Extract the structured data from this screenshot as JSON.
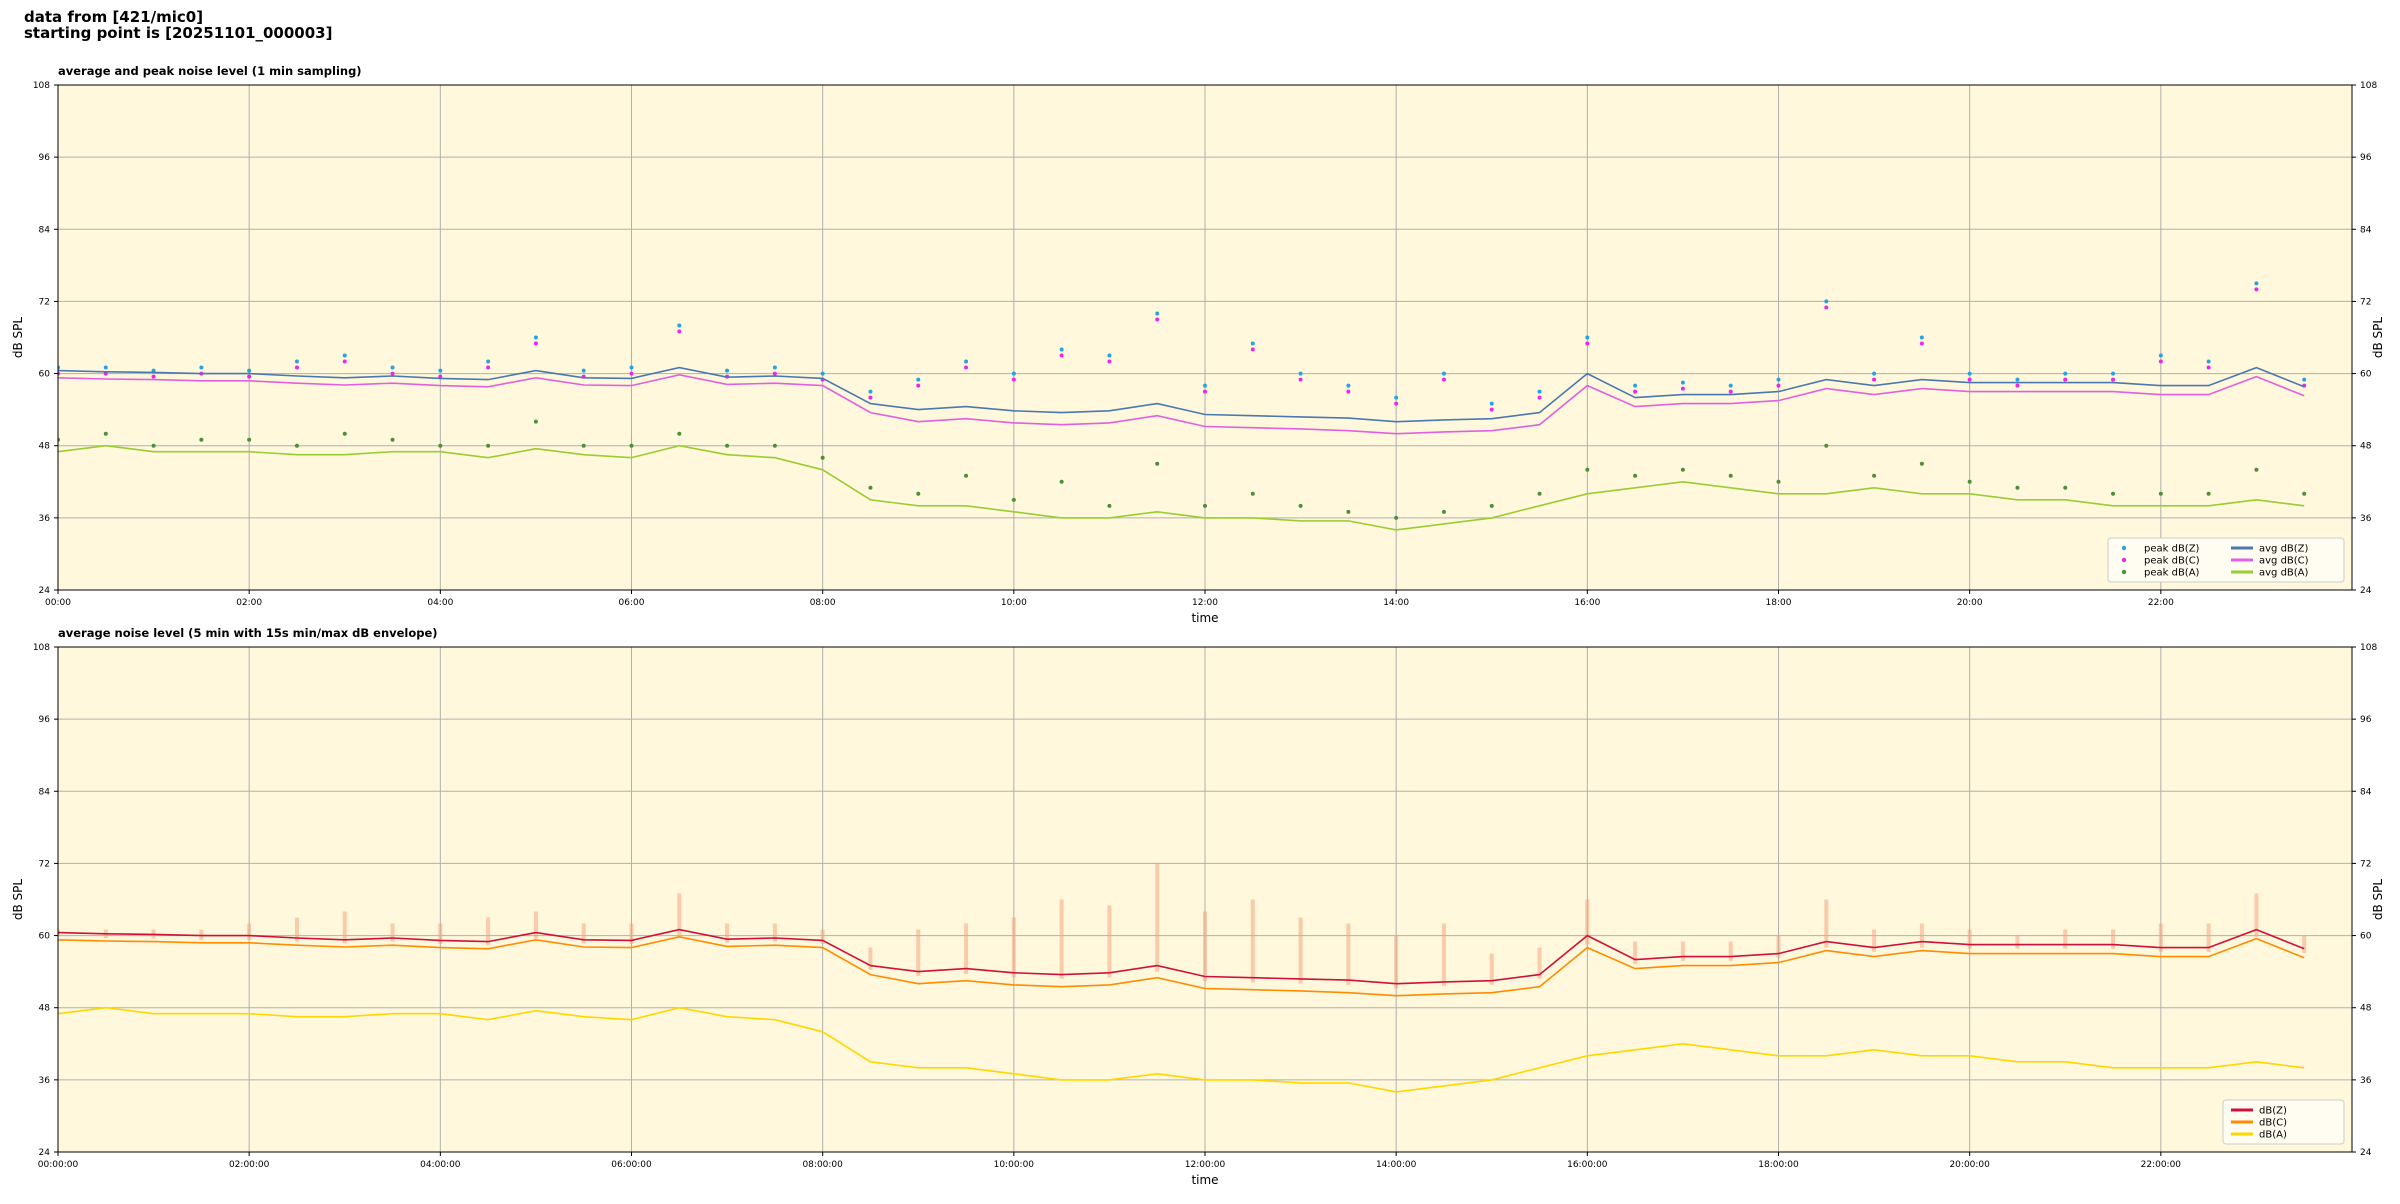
{
  "header": {
    "source": "data from [421/mic0]",
    "start": "starting point is [20251101_000003]"
  },
  "chart_data": [
    {
      "type": "line",
      "title": "average and peak noise level (1 min sampling)",
      "xlabel": "time",
      "ylabel": "dB SPL",
      "background": "#fff8dc",
      "grid": true,
      "legend": "lower right",
      "legend_columns": 2,
      "xlim": [
        0,
        24
      ],
      "xticks": [
        {
          "value": 0,
          "label": "00:00"
        },
        {
          "value": 2,
          "label": "02:00"
        },
        {
          "value": 4,
          "label": "04:00"
        },
        {
          "value": 6,
          "label": "06:00"
        },
        {
          "value": 8,
          "label": "08:00"
        },
        {
          "value": 10,
          "label": "10:00"
        },
        {
          "value": 12,
          "label": "12:00"
        },
        {
          "value": 14,
          "label": "14:00"
        },
        {
          "value": 16,
          "label": "16:00"
        },
        {
          "value": 18,
          "label": "18:00"
        },
        {
          "value": 20,
          "label": "20:00"
        },
        {
          "value": 22,
          "label": "22:00"
        }
      ],
      "ylim": [
        24,
        108
      ],
      "yticks": [
        24,
        36,
        48,
        60,
        72,
        84,
        96,
        108
      ],
      "x": [
        0,
        0.5,
        1,
        1.5,
        2,
        2.5,
        3,
        3.5,
        4,
        4.5,
        5,
        5.5,
        6,
        6.5,
        7,
        7.5,
        8,
        8.5,
        9,
        9.5,
        10,
        10.5,
        11,
        11.5,
        12,
        12.5,
        13,
        13.5,
        14,
        14.5,
        15,
        15.5,
        16,
        16.5,
        17,
        17.5,
        18,
        18.5,
        19,
        19.5,
        20,
        20.5,
        21,
        21.5,
        22,
        22.5,
        23,
        23.5
      ],
      "series": [
        {
          "name": "peak dB(Z)",
          "style": "points",
          "color": "#29a3e0",
          "values": [
            61,
            61,
            60.5,
            61,
            60.5,
            62,
            63,
            61,
            60.5,
            62,
            66,
            60.5,
            61,
            68,
            60.5,
            61,
            60,
            57,
            59,
            62,
            60,
            64,
            63,
            70,
            58,
            65,
            60,
            58,
            56,
            60,
            55,
            57,
            66,
            58,
            58.5,
            58,
            59,
            72,
            60,
            66,
            60,
            59,
            60,
            60,
            63,
            62,
            75,
            59
          ]
        },
        {
          "name": "peak dB(C)",
          "style": "points",
          "color": "#e82ae8",
          "values": [
            60,
            60,
            59.5,
            60,
            59.5,
            61,
            62,
            60,
            59.5,
            61,
            65,
            59.5,
            60,
            67,
            59.5,
            60,
            59,
            56,
            58,
            61,
            59,
            63,
            62,
            69,
            57,
            64,
            59,
            57,
            55,
            59,
            54,
            56,
            65,
            57,
            57.5,
            57,
            58,
            71,
            59,
            65,
            59,
            58,
            59,
            59,
            62,
            61,
            74,
            58
          ]
        },
        {
          "name": "peak dB(A)",
          "style": "points",
          "color": "#4f8f3a",
          "values": [
            49,
            50,
            48,
            49,
            49,
            48,
            50,
            49,
            48,
            48,
            52,
            48,
            48,
            50,
            48,
            48,
            46,
            41,
            40,
            43,
            39,
            42,
            38,
            45,
            38,
            40,
            38,
            37,
            36,
            37,
            38,
            40,
            44,
            43,
            44,
            43,
            42,
            48,
            43,
            45,
            42,
            41,
            41,
            40,
            40,
            40,
            44,
            40
          ]
        },
        {
          "name": "avg dB(Z)",
          "style": "line",
          "color": "#4a78b0",
          "values": [
            60.5,
            60.3,
            60.2,
            60,
            60,
            59.6,
            59.3,
            59.6,
            59.2,
            59,
            60.5,
            59.3,
            59.2,
            61,
            59.4,
            59.6,
            59.2,
            55,
            54,
            54.5,
            53.8,
            53.5,
            53.8,
            55,
            53.2,
            53,
            52.8,
            52.6,
            52,
            52.3,
            52.5,
            53.5,
            60,
            56,
            56.5,
            56.5,
            57,
            59,
            58,
            59,
            58.5,
            58.5,
            58.5,
            58.5,
            58,
            58,
            61,
            57.8
          ]
        },
        {
          "name": "avg dB(C)",
          "style": "line",
          "color": "#e060e0",
          "values": [
            59.3,
            59.1,
            59,
            58.8,
            58.8,
            58.4,
            58.1,
            58.4,
            58,
            57.8,
            59.3,
            58.1,
            58,
            59.8,
            58.2,
            58.4,
            58,
            53.5,
            52,
            52.5,
            51.8,
            51.5,
            51.8,
            53,
            51.2,
            51,
            50.8,
            50.5,
            50,
            50.3,
            50.5,
            51.5,
            58,
            54.5,
            55,
            55,
            55.5,
            57.5,
            56.5,
            57.5,
            57,
            57,
            57,
            57,
            56.5,
            56.5,
            59.5,
            56.3
          ]
        },
        {
          "name": "avg dB(A)",
          "style": "line",
          "color": "#9acd32",
          "values": [
            47,
            48,
            47,
            47,
            47,
            46.5,
            46.5,
            47,
            47,
            46,
            47.5,
            46.5,
            46,
            48,
            46.5,
            46,
            44,
            39,
            38,
            38,
            37,
            36,
            36,
            37,
            36,
            36,
            35.5,
            35.5,
            34,
            35,
            36,
            38,
            40,
            41,
            42,
            41,
            40,
            40,
            41,
            40,
            40,
            39,
            39,
            38,
            38,
            38,
            39,
            38
          ]
        }
      ]
    },
    {
      "type": "line",
      "title": "average noise level (5 min with 15s min/max dB envelope)",
      "xlabel": "time",
      "ylabel": "dB SPL",
      "background": "#fff8dc",
      "grid": true,
      "legend": "lower right",
      "legend_columns": 1,
      "xlim": [
        0,
        24
      ],
      "xticks": [
        {
          "value": 0,
          "label": "00:00:00"
        },
        {
          "value": 2,
          "label": "02:00:00"
        },
        {
          "value": 4,
          "label": "04:00:00"
        },
        {
          "value": 6,
          "label": "06:00:00"
        },
        {
          "value": 8,
          "label": "08:00:00"
        },
        {
          "value": 10,
          "label": "10:00:00"
        },
        {
          "value": 12,
          "label": "12:00:00"
        },
        {
          "value": 14,
          "label": "14:00:00"
        },
        {
          "value": 16,
          "label": "16:00:00"
        },
        {
          "value": 18,
          "label": "18:00:00"
        },
        {
          "value": 20,
          "label": "20:00:00"
        },
        {
          "value": 22,
          "label": "22:00:00"
        }
      ],
      "ylim": [
        24,
        108
      ],
      "yticks": [
        24,
        36,
        48,
        60,
        72,
        84,
        96,
        108
      ],
      "x": [
        0,
        0.5,
        1,
        1.5,
        2,
        2.5,
        3,
        3.5,
        4,
        4.5,
        5,
        5.5,
        6,
        6.5,
        7,
        7.5,
        8,
        8.5,
        9,
        9.5,
        10,
        10.5,
        11,
        11.5,
        12,
        12.5,
        13,
        13.5,
        14,
        14.5,
        15,
        15.5,
        16,
        16.5,
        17,
        17.5,
        18,
        18.5,
        19,
        19.5,
        20,
        20.5,
        21,
        21.5,
        22,
        22.5,
        23,
        23.5
      ],
      "series": [
        {
          "name": "dB(Z)",
          "style": "line",
          "color": "#d0103a",
          "values": [
            60.5,
            60.3,
            60.2,
            60,
            60,
            59.6,
            59.3,
            59.6,
            59.2,
            59,
            60.5,
            59.3,
            59.2,
            61,
            59.4,
            59.6,
            59.2,
            55,
            54,
            54.5,
            53.8,
            53.5,
            53.8,
            55,
            53.2,
            53,
            52.8,
            52.6,
            52,
            52.3,
            52.5,
            53.5,
            60,
            56,
            56.5,
            56.5,
            57,
            59,
            58,
            59,
            58.5,
            58.5,
            58.5,
            58.5,
            58,
            58,
            61,
            57.8
          ],
          "envelope": {
            "color": "#f4a582",
            "max": [
              61,
              61,
              61,
              61,
              62,
              63,
              64,
              62,
              62,
              63,
              64,
              62,
              62,
              67,
              62,
              62,
              61,
              58,
              61,
              62,
              63,
              66,
              65,
              72,
              64,
              66,
              63,
              62,
              60,
              62,
              57,
              58,
              66,
              59,
              59,
              59,
              60,
              66,
              61,
              62,
              61,
              60,
              61,
              61,
              62,
              62,
              67,
              60
            ],
            "min": [
              59.8,
              59.6,
              59.5,
              59.3,
              59.3,
              59,
              58.7,
              59,
              58.6,
              58.4,
              59.5,
              58.7,
              58.6,
              60,
              58.8,
              59,
              58.6,
              54.3,
              53.3,
              53.6,
              53,
              52.8,
              53,
              54,
              52.4,
              52.2,
              52,
              51.8,
              51.2,
              51.6,
              51.8,
              52.8,
              58.5,
              55.3,
              55.8,
              55.8,
              56.3,
              58,
              57.3,
              58,
              57.8,
              57.8,
              57.8,
              57.8,
              57.3,
              57.3,
              59.8,
              57.1
            ]
          }
        },
        {
          "name": "dB(C)",
          "style": "line",
          "color": "#ff8c00",
          "values": [
            59.3,
            59.1,
            59,
            58.8,
            58.8,
            58.4,
            58.1,
            58.4,
            58,
            57.8,
            59.3,
            58.1,
            58,
            59.8,
            58.2,
            58.4,
            58,
            53.5,
            52,
            52.5,
            51.8,
            51.5,
            51.8,
            53,
            51.2,
            51,
            50.8,
            50.5,
            50,
            50.3,
            50.5,
            51.5,
            58,
            54.5,
            55,
            55,
            55.5,
            57.5,
            56.5,
            57.5,
            57,
            57,
            57,
            57,
            56.5,
            56.5,
            59.5,
            56.3
          ]
        },
        {
          "name": "dB(A)",
          "style": "line",
          "color": "#ffd700",
          "values": [
            47,
            48,
            47,
            47,
            47,
            46.5,
            46.5,
            47,
            47,
            46,
            47.5,
            46.5,
            46,
            48,
            46.5,
            46,
            44,
            39,
            38,
            38,
            37,
            36,
            36,
            37,
            36,
            36,
            35.5,
            35.5,
            34,
            35,
            36,
            38,
            40,
            41,
            42,
            41,
            40,
            40,
            41,
            40,
            40,
            39,
            39,
            38,
            38,
            38,
            39,
            38
          ]
        }
      ]
    }
  ]
}
